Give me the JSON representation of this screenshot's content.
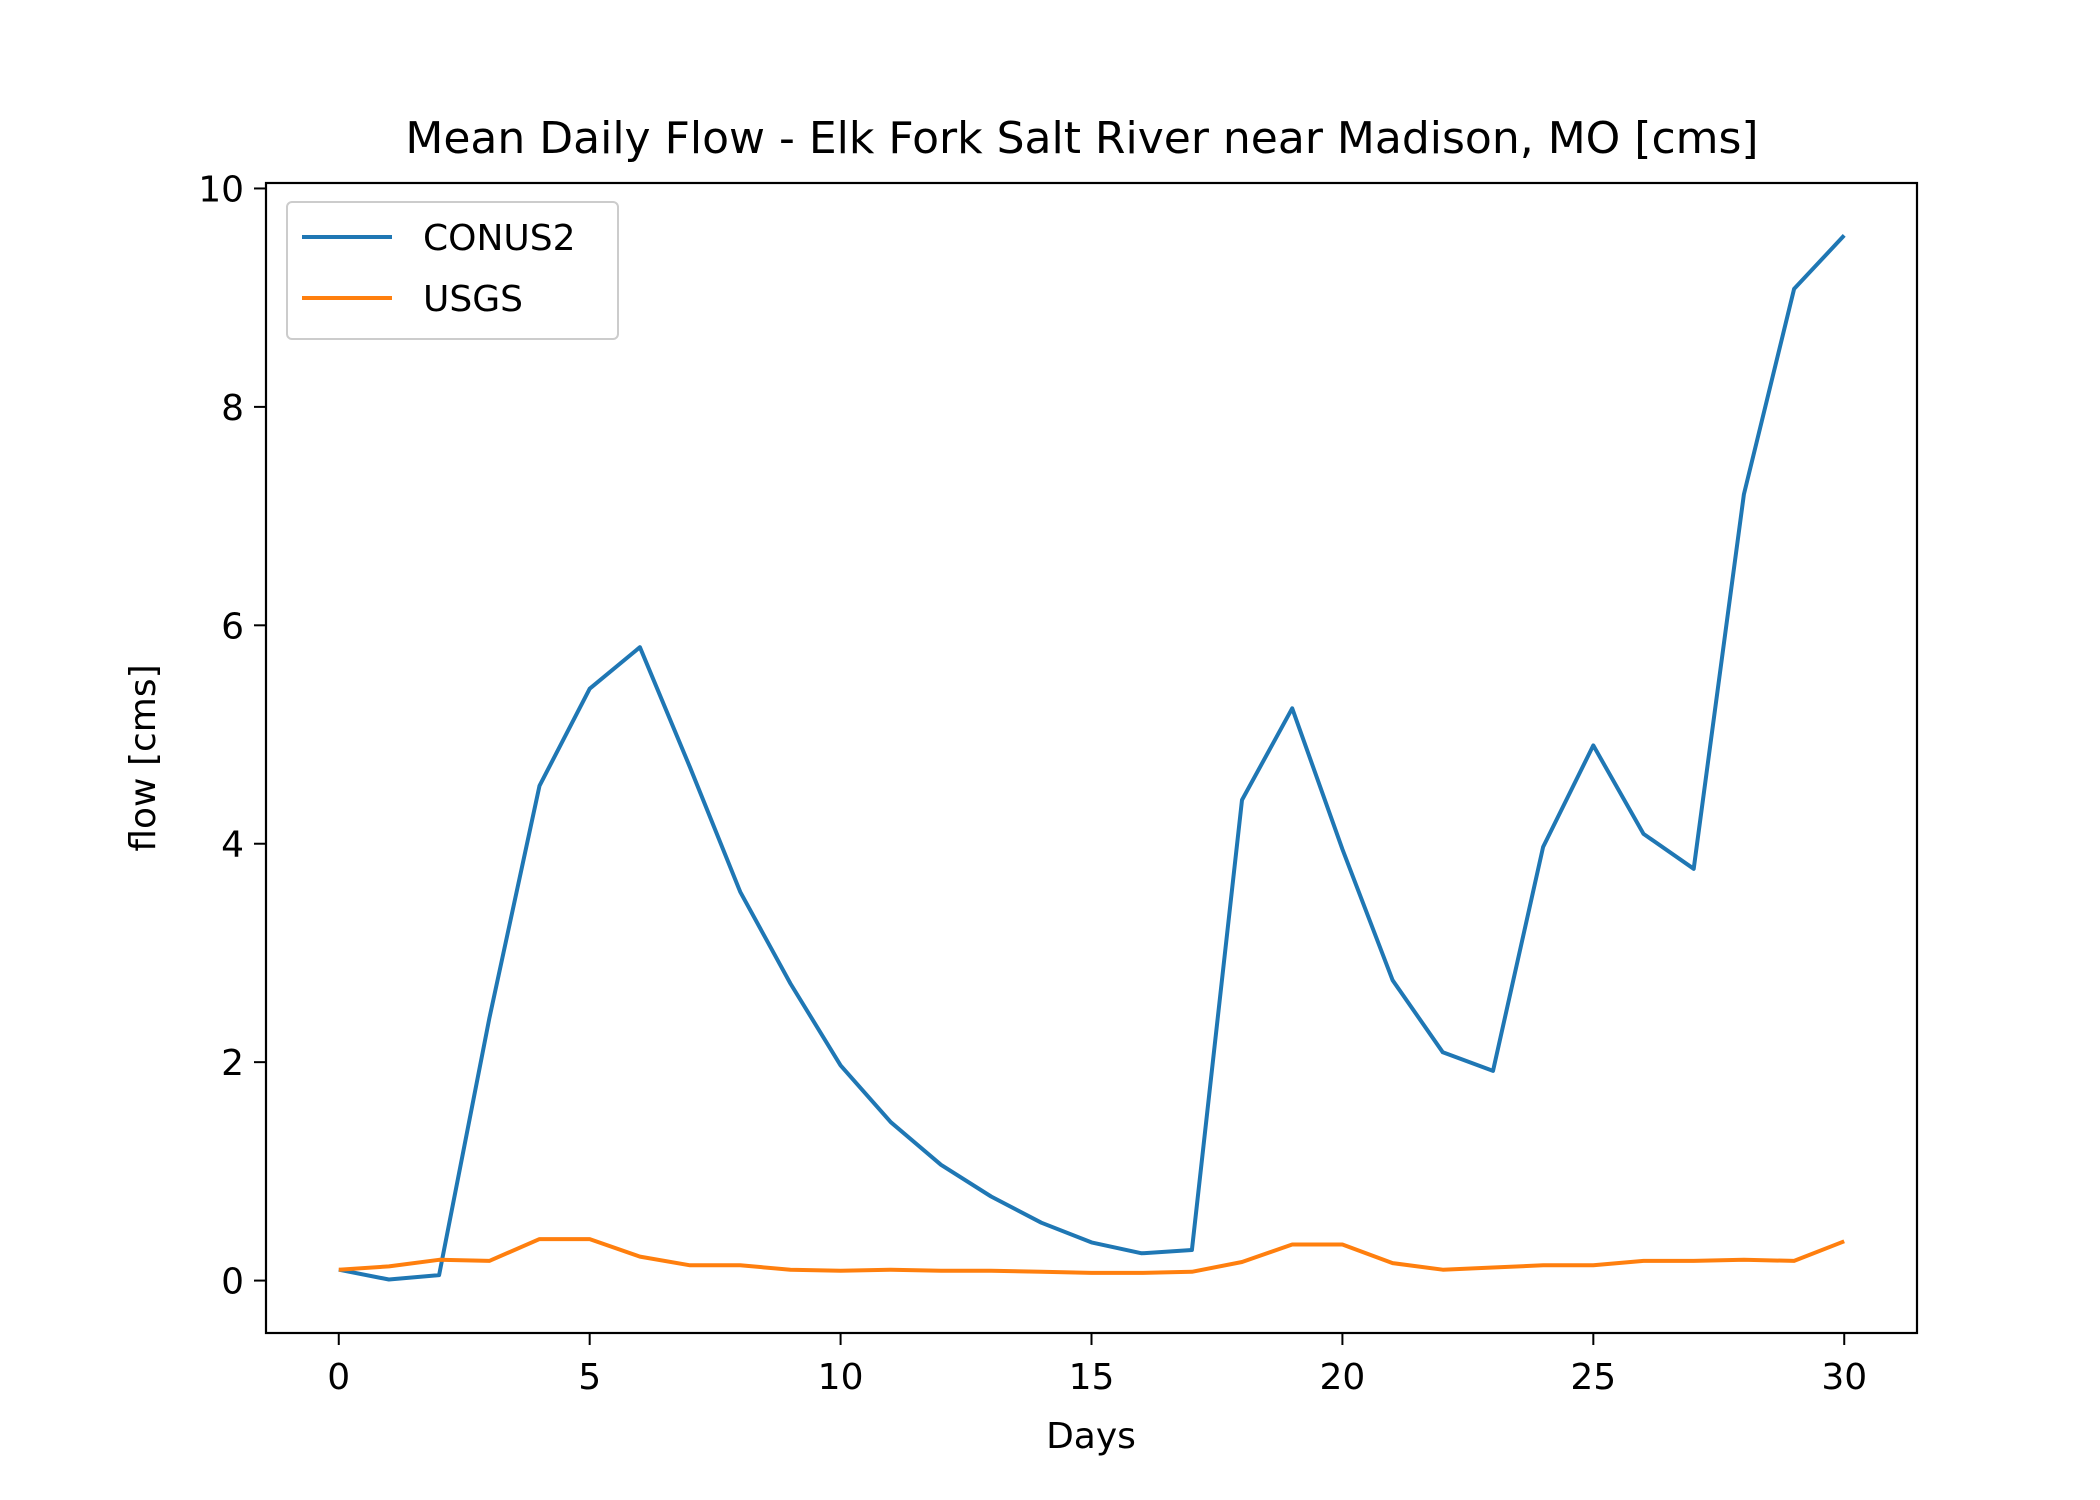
{
  "chart_data": {
    "type": "line",
    "title": "Mean Daily Flow - Elk Fork Salt River near Madison, MO [cms]",
    "xlabel": "Days",
    "ylabel": "flow [cms]",
    "xlim": [
      -1.45,
      31.45
    ],
    "ylim": [
      -0.48,
      10.05
    ],
    "xticks": [
      0,
      5,
      10,
      15,
      20,
      25,
      30
    ],
    "yticks": [
      0,
      2,
      4,
      6,
      8,
      10
    ],
    "grid": false,
    "legend_position": "top-left",
    "x": [
      0,
      1,
      2,
      3,
      4,
      5,
      6,
      7,
      8,
      9,
      10,
      11,
      12,
      13,
      14,
      15,
      16,
      17,
      18,
      19,
      20,
      21,
      22,
      23,
      24,
      25,
      26,
      27,
      28,
      29,
      30
    ],
    "series": [
      {
        "name": "CONUS2",
        "color": "#1f77b4",
        "values": [
          0.1,
          0.01,
          0.05,
          2.4,
          4.53,
          5.42,
          5.8,
          4.7,
          3.56,
          2.72,
          1.97,
          1.45,
          1.06,
          0.77,
          0.53,
          0.35,
          0.25,
          0.28,
          4.4,
          5.24,
          3.95,
          2.75,
          2.09,
          1.92,
          3.97,
          4.9,
          4.09,
          3.77,
          7.2,
          9.08,
          9.57
        ]
      },
      {
        "name": "USGS",
        "color": "#ff7f0e",
        "values": [
          0.1,
          0.13,
          0.19,
          0.18,
          0.38,
          0.38,
          0.22,
          0.14,
          0.14,
          0.1,
          0.09,
          0.1,
          0.09,
          0.09,
          0.08,
          0.07,
          0.07,
          0.08,
          0.17,
          0.33,
          0.33,
          0.16,
          0.1,
          0.12,
          0.14,
          0.14,
          0.18,
          0.18,
          0.19,
          0.18,
          0.36
        ]
      }
    ]
  }
}
